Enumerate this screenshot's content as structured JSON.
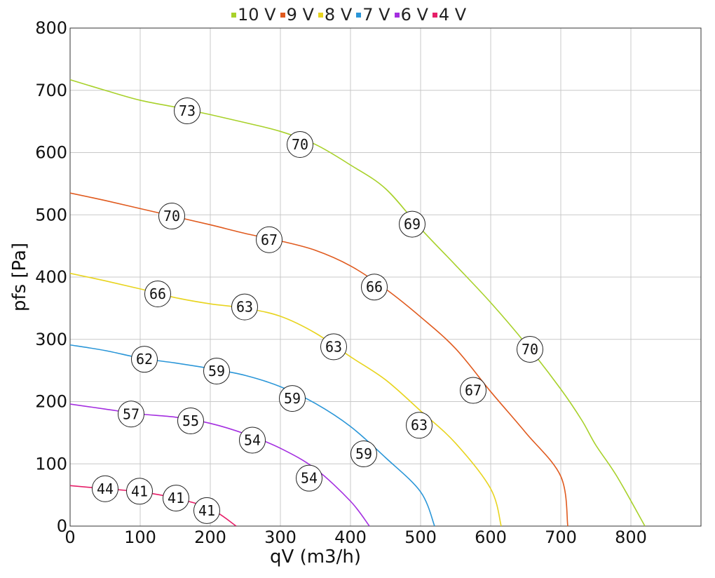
{
  "chart_data": {
    "type": "line",
    "xlabel": "qV (m3/h)",
    "ylabel": "pfs [Pa]",
    "xlim": [
      0,
      900
    ],
    "ylim": [
      0,
      800
    ],
    "x_ticks": [
      "0",
      "100",
      "200",
      "300",
      "400",
      "500",
      "600",
      "700",
      "800"
    ],
    "y_ticks": [
      "0",
      "100",
      "200",
      "300",
      "400",
      "500",
      "600",
      "700",
      "800"
    ],
    "grid": true,
    "legend_position": "top",
    "series": [
      {
        "name": "10 V",
        "color": "#a8d12a",
        "points": [
          [
            0,
            717
          ],
          [
            50,
            700
          ],
          [
            100,
            684
          ],
          [
            150,
            673
          ],
          [
            200,
            661
          ],
          [
            250,
            648
          ],
          [
            300,
            634
          ],
          [
            350,
            613
          ],
          [
            400,
            580
          ],
          [
            450,
            542
          ],
          [
            500,
            478
          ],
          [
            550,
            419
          ],
          [
            600,
            359
          ],
          [
            650,
            293
          ],
          [
            700,
            220
          ],
          [
            730,
            170
          ],
          [
            750,
            130
          ],
          [
            780,
            80
          ],
          [
            820,
            0
          ]
        ],
        "labels": [
          {
            "x": 167,
            "y": 667,
            "text": "73"
          },
          {
            "x": 328,
            "y": 613,
            "text": "70"
          },
          {
            "x": 488,
            "y": 485,
            "text": "69"
          },
          {
            "x": 656,
            "y": 284,
            "text": "70"
          }
        ]
      },
      {
        "name": "9 V",
        "color": "#e05a1e",
        "points": [
          [
            0,
            535
          ],
          [
            50,
            523
          ],
          [
            100,
            510
          ],
          [
            150,
            497
          ],
          [
            200,
            484
          ],
          [
            250,
            470
          ],
          [
            300,
            458
          ],
          [
            350,
            443
          ],
          [
            400,
            418
          ],
          [
            450,
            381
          ],
          [
            500,
            336
          ],
          [
            550,
            285
          ],
          [
            600,
            216
          ],
          [
            650,
            150
          ],
          [
            700,
            80
          ],
          [
            710,
            0
          ]
        ],
        "labels": [
          {
            "x": 145,
            "y": 498,
            "text": "70"
          },
          {
            "x": 284,
            "y": 460,
            "text": "67"
          },
          {
            "x": 434,
            "y": 384,
            "text": "66"
          },
          {
            "x": 575,
            "y": 218,
            "text": "67"
          }
        ]
      },
      {
        "name": "8 V",
        "color": "#e8d41e",
        "points": [
          [
            0,
            406
          ],
          [
            50,
            394
          ],
          [
            100,
            381
          ],
          [
            150,
            367
          ],
          [
            200,
            357
          ],
          [
            250,
            350
          ],
          [
            300,
            337
          ],
          [
            350,
            310
          ],
          [
            400,
            272
          ],
          [
            450,
            235
          ],
          [
            500,
            185
          ],
          [
            550,
            133
          ],
          [
            600,
            60
          ],
          [
            615,
            0
          ]
        ],
        "labels": [
          {
            "x": 125,
            "y": 373,
            "text": "66"
          },
          {
            "x": 249,
            "y": 352,
            "text": "63"
          },
          {
            "x": 376,
            "y": 288,
            "text": "63"
          },
          {
            "x": 498,
            "y": 162,
            "text": "63"
          }
        ]
      },
      {
        "name": "7 V",
        "color": "#2a96d8",
        "points": [
          [
            0,
            291
          ],
          [
            50,
            282
          ],
          [
            100,
            270
          ],
          [
            150,
            262
          ],
          [
            200,
            253
          ],
          [
            250,
            242
          ],
          [
            300,
            224
          ],
          [
            350,
            197
          ],
          [
            400,
            160
          ],
          [
            450,
            110
          ],
          [
            500,
            55
          ],
          [
            520,
            0
          ]
        ],
        "labels": [
          {
            "x": 106,
            "y": 268,
            "text": "62"
          },
          {
            "x": 209,
            "y": 249,
            "text": "59"
          },
          {
            "x": 317,
            "y": 205,
            "text": "59"
          },
          {
            "x": 419,
            "y": 116,
            "text": "59"
          }
        ]
      },
      {
        "name": "6 V",
        "color": "#a42ee0",
        "points": [
          [
            0,
            196
          ],
          [
            50,
            188
          ],
          [
            100,
            180
          ],
          [
            150,
            175
          ],
          [
            200,
            165
          ],
          [
            250,
            148
          ],
          [
            300,
            125
          ],
          [
            350,
            92
          ],
          [
            400,
            40
          ],
          [
            427,
            0
          ]
        ],
        "labels": [
          {
            "x": 87,
            "y": 180,
            "text": "57"
          },
          {
            "x": 172,
            "y": 169,
            "text": "55"
          },
          {
            "x": 260,
            "y": 138,
            "text": "54"
          },
          {
            "x": 341,
            "y": 77,
            "text": "54"
          }
        ]
      },
      {
        "name": "4 V",
        "color": "#e61e68",
        "points": [
          [
            0,
            65
          ],
          [
            50,
            60
          ],
          [
            100,
            55
          ],
          [
            150,
            45
          ],
          [
            200,
            28
          ],
          [
            237,
            0
          ]
        ],
        "labels": [
          {
            "x": 50,
            "y": 60,
            "text": "44"
          },
          {
            "x": 99,
            "y": 56,
            "text": "41"
          },
          {
            "x": 151,
            "y": 45,
            "text": "41"
          },
          {
            "x": 195,
            "y": 25,
            "text": "41"
          }
        ]
      }
    ]
  }
}
